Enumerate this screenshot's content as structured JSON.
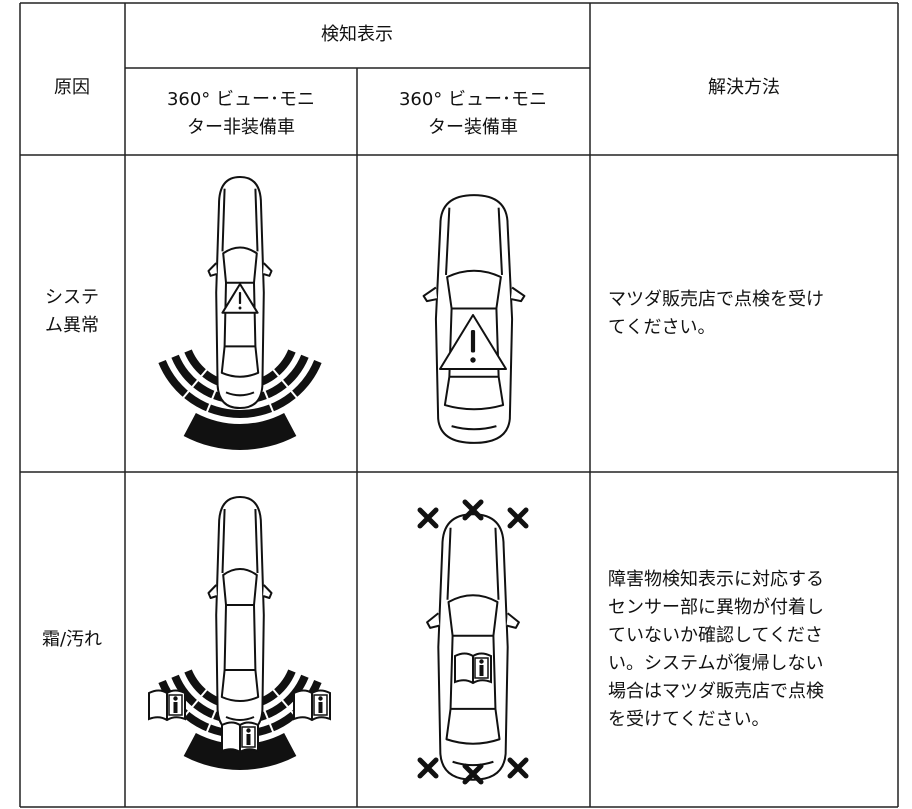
{
  "header": {
    "cause": "原因",
    "detection": "検知表示",
    "without_monitor": [
      "360° ビュー･モニ",
      "ター非装備車"
    ],
    "with_monitor": [
      "360° ビュー･モニ",
      "ター装備車"
    ],
    "solution": "解決方法"
  },
  "rows": [
    {
      "cause": [
        "システ",
        "ム異常"
      ],
      "solution": [
        "マツダ販売店で点検を受け",
        "てください。"
      ]
    },
    {
      "cause": [
        "霜/汚れ"
      ],
      "solution": [
        "障害物検知表示に対応する",
        "センサー部に異物が付着し",
        "ていないか確認してくださ",
        "い。システムが復帰しない",
        "場合はマツダ販売店で点検",
        "を受けてください。"
      ]
    }
  ]
}
